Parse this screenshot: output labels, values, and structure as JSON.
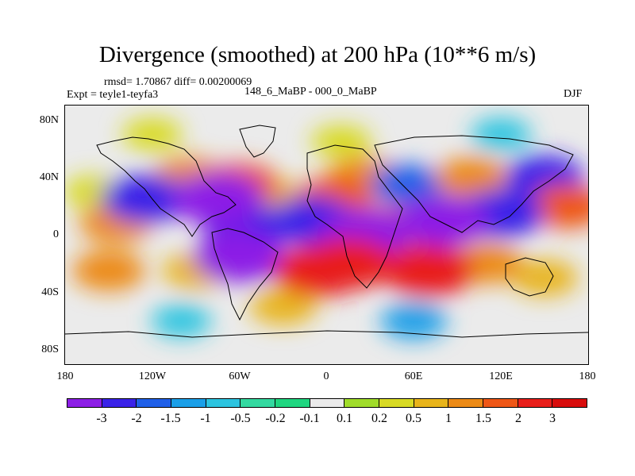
{
  "chart_data": {
    "type": "heatmap",
    "title": "Divergence (smoothed) at 200 hPa (10**6 m/s)",
    "stats": "rmsd= 1.70867 diff= 0.00200069",
    "experiment": "Expt = teyle1-teyfa3",
    "case": "148_6_MaBP - 000_0_MaBP",
    "season": "DJF",
    "x_ticks": [
      "180",
      "120W",
      "60W",
      "0",
      "60E",
      "120E",
      "180"
    ],
    "y_ticks": [
      "80N",
      "40N",
      "0",
      "40S",
      "80S"
    ],
    "x_range": [
      -180,
      180
    ],
    "y_range": [
      -90,
      90
    ],
    "colorbar": {
      "labels": [
        "-3",
        "-2",
        "-1.5",
        "-1",
        "-0.5",
        "-0.2",
        "-0.1",
        "0.1",
        "0.2",
        "0.5",
        "1",
        "1.5",
        "2",
        "3"
      ],
      "colors": [
        "#8c1ee6",
        "#3a22e8",
        "#1f5fe8",
        "#1a9fe8",
        "#2cc4e0",
        "#33d9a0",
        "#1fd680",
        "#ebebeb",
        "#a0dc2a",
        "#d8da24",
        "#e8b41a",
        "#ec8a16",
        "#ee5616",
        "#e81e1a",
        "#d80c0c"
      ]
    },
    "anomaly_centers": [
      {
        "lon": -125,
        "lat": 25,
        "value": -2.5
      },
      {
        "lon": -145,
        "lat": 8,
        "value": 1.5
      },
      {
        "lon": -160,
        "lat": 30,
        "value": 0.5
      },
      {
        "lon": -150,
        "lat": -25,
        "value": 1.5
      },
      {
        "lon": -95,
        "lat": 40,
        "value": 1.5
      },
      {
        "lon": -75,
        "lat": 25,
        "value": -3
      },
      {
        "lon": -60,
        "lat": 35,
        "value": 2
      },
      {
        "lon": -90,
        "lat": -25,
        "value": 1
      },
      {
        "lon": -55,
        "lat": 5,
        "value": -2.5
      },
      {
        "lon": -60,
        "lat": -15,
        "value": -3
      },
      {
        "lon": -35,
        "lat": 25,
        "value": 1
      },
      {
        "lon": -30,
        "lat": -50,
        "value": 1
      },
      {
        "lon": -10,
        "lat": 10,
        "value": -2.5
      },
      {
        "lon": 5,
        "lat": 25,
        "value": 2
      },
      {
        "lon": -5,
        "lat": -25,
        "value": 3
      },
      {
        "lon": 25,
        "lat": 40,
        "value": 1.5
      },
      {
        "lon": 25,
        "lat": 0,
        "value": -3
      },
      {
        "lon": 15,
        "lat": -20,
        "value": 3
      },
      {
        "lon": 55,
        "lat": 35,
        "value": -1.5
      },
      {
        "lon": 45,
        "lat": 5,
        "value": 2
      },
      {
        "lon": 80,
        "lat": 10,
        "value": -3
      },
      {
        "lon": 70,
        "lat": -25,
        "value": 3
      },
      {
        "lon": 100,
        "lat": 40,
        "value": 1.5
      },
      {
        "lon": 120,
        "lat": 15,
        "value": -2.5
      },
      {
        "lon": 110,
        "lat": -20,
        "value": 1.5
      },
      {
        "lon": 150,
        "lat": 40,
        "value": -2
      },
      {
        "lon": 165,
        "lat": 20,
        "value": 2
      },
      {
        "lon": 150,
        "lat": -30,
        "value": 1
      },
      {
        "lon": -100,
        "lat": -60,
        "value": -0.5
      },
      {
        "lon": 60,
        "lat": -60,
        "value": -1
      },
      {
        "lon": 10,
        "lat": 65,
        "value": 0.5
      },
      {
        "lon": -120,
        "lat": 70,
        "value": 0.5
      },
      {
        "lon": 120,
        "lat": 70,
        "value": -0.5
      }
    ]
  }
}
